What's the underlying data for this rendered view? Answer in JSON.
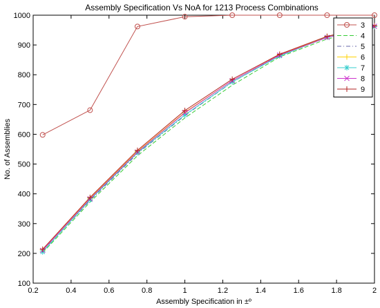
{
  "chart_data": {
    "type": "line",
    "title": "Assembly Specification Vs NoA for 1213 Process Combinations",
    "xlabel": "Assembly Specification in ±º",
    "ylabel": "No. of Assemblies",
    "xlim": [
      0.2,
      2
    ],
    "ylim": [
      100,
      1000
    ],
    "xticks": [
      "0.2",
      "0.4",
      "0.6",
      "0.8",
      "1",
      "1.2",
      "1.4",
      "1.6",
      "1.8",
      "2"
    ],
    "yticks": [
      "100",
      "200",
      "300",
      "400",
      "500",
      "600",
      "700",
      "800",
      "900",
      "1000"
    ],
    "grid": false,
    "legend_position": "top-right",
    "x": [
      0.25,
      0.5,
      0.75,
      1.0,
      1.25,
      1.5,
      1.75,
      2.0
    ],
    "series": [
      {
        "name": "3",
        "color": "#c0504d",
        "dash": "solid",
        "marker": "circle",
        "values": [
          598,
          681,
          962,
          995,
          1000,
          1000,
          1000,
          1000
        ]
      },
      {
        "name": "4",
        "color": "#33cc33",
        "dash": "dashed",
        "marker": "none",
        "values": [
          202,
          372,
          528,
          655,
          765,
          860,
          920,
          958
        ]
      },
      {
        "name": "5",
        "color": "#6666aa",
        "dash": "dashdot",
        "marker": "none",
        "values": [
          207,
          377,
          535,
          663,
          775,
          865,
          925,
          962
        ]
      },
      {
        "name": "6",
        "color": "#ffd200",
        "dash": "solid",
        "marker": "plus",
        "values": [
          211,
          385,
          542,
          674,
          780,
          867,
          928,
          964
        ]
      },
      {
        "name": "7",
        "color": "#33cccc",
        "dash": "solid",
        "marker": "star",
        "values": [
          205,
          380,
          538,
          665,
          776,
          863,
          926,
          962
        ]
      },
      {
        "name": "8",
        "color": "#cc33cc",
        "dash": "solid",
        "marker": "x",
        "values": [
          210,
          383,
          540,
          672,
          780,
          866,
          925,
          963
        ]
      },
      {
        "name": "9",
        "color": "#b22222",
        "dash": "solid",
        "marker": "plus",
        "values": [
          214,
          388,
          546,
          680,
          785,
          869,
          929,
          965
        ]
      }
    ]
  }
}
